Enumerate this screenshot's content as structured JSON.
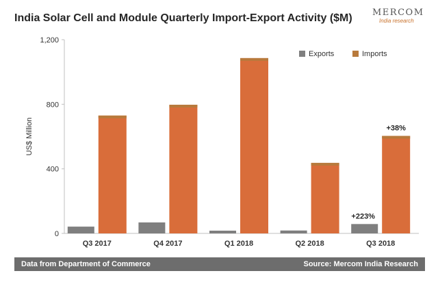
{
  "header": {
    "title": "India Solar Cell and Module Quarterly Import-Export Activity ($M)",
    "logo_name": "MERCOM",
    "logo_sub": "India research"
  },
  "footer": {
    "left_text": "Data from Department of Commerce",
    "right_text": "Source: Mercom India Research"
  },
  "colors": {
    "exports": "#7f7f7f",
    "imports": "#d96d3a",
    "imports_top": "#b87a3c",
    "axis": "#bfbfbf",
    "text": "#333333"
  },
  "chart_data": {
    "type": "bar",
    "title": "India Solar Cell and Module Quarterly Import-Export Activity ($M)",
    "xlabel": "",
    "ylabel": "US$ Million",
    "ylim": [
      0,
      1200
    ],
    "yticks": [
      0,
      400,
      800,
      1200
    ],
    "ytick_labels": [
      "0",
      "400",
      "800",
      "1,200"
    ],
    "grid": false,
    "legend_position": "top-right",
    "categories": [
      "Q3 2017",
      "Q4 2017",
      "Q1 2018",
      "Q2 2018",
      "Q3 2018"
    ],
    "series": [
      {
        "name": "Exports",
        "values": [
          42,
          68,
          17,
          18,
          58
        ]
      },
      {
        "name": "Imports",
        "values": [
          730,
          797,
          1086,
          437,
          604
        ]
      }
    ],
    "annotations": [
      {
        "category": "Q3 2018",
        "series": "Exports",
        "text": "+223%"
      },
      {
        "category": "Q3 2018",
        "series": "Imports",
        "text": "+38%"
      }
    ]
  }
}
